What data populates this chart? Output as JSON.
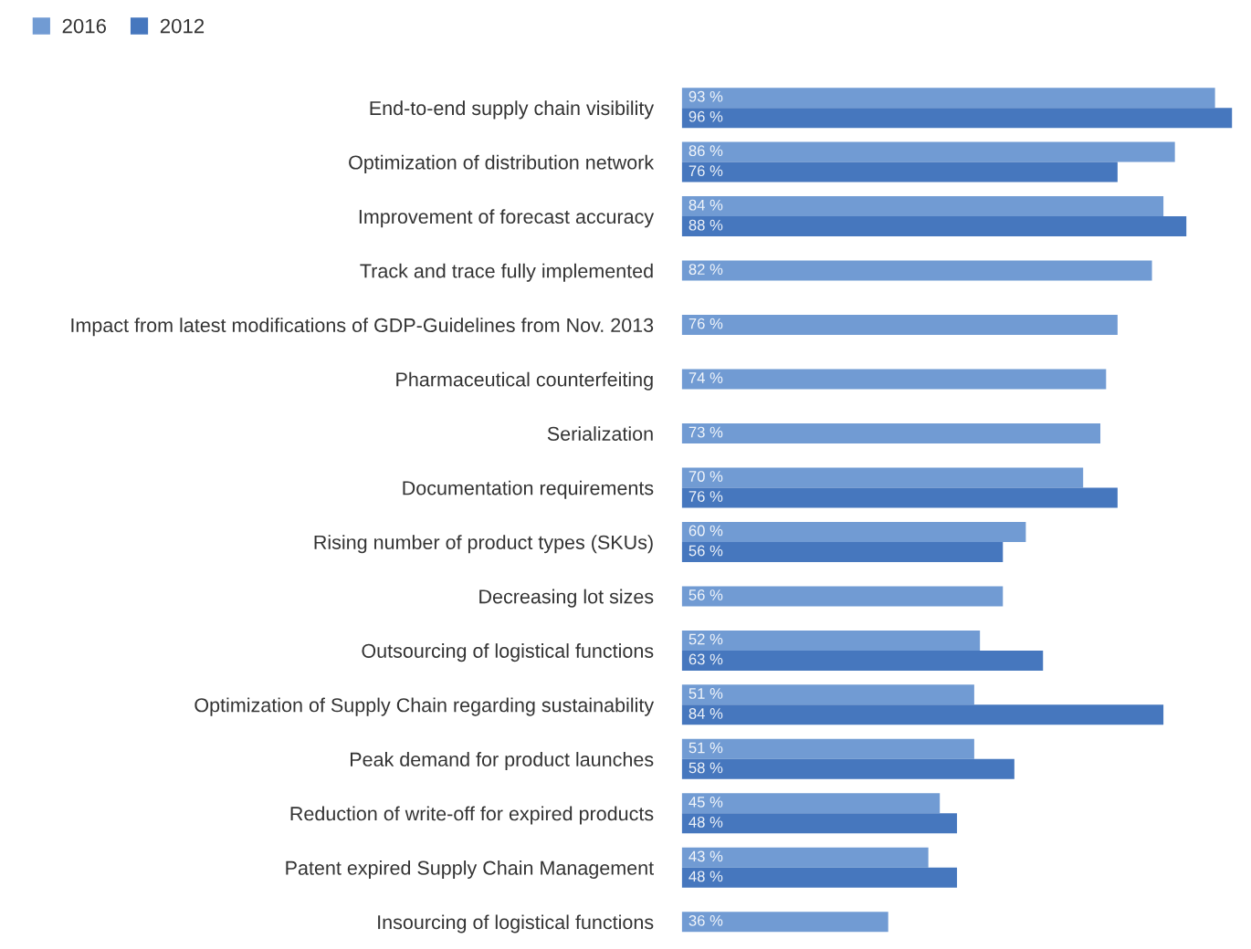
{
  "chart_data": {
    "type": "bar",
    "orientation": "horizontal",
    "legend": "top left",
    "grid": false,
    "categories": [
      "End-to-end supply chain visibility",
      "Optimization of distribution network",
      "Improvement of forecast accuracy",
      "Track and trace fully implemented",
      "Impact from latest modifications of GDP-Guidelines from Nov. 2013",
      "Pharmaceutical counterfeiting",
      "Serialization",
      "Documentation requirements",
      "Rising number of product types (SKUs)",
      "Decreasing lot sizes",
      "Outsourcing of logistical functions",
      "Optimization of Supply Chain regarding sustainability",
      "Peak demand for product launches",
      "Reduction of write-off for expired products",
      "Patent expired Supply Chain Management",
      "Insourcing of logistical functions"
    ],
    "series": [
      {
        "name": "2016",
        "color": "#719bd3",
        "values": [
          93,
          86,
          84,
          82,
          76,
          74,
          73,
          70,
          60,
          56,
          52,
          51,
          51,
          45,
          43,
          36
        ],
        "value_labels": [
          "93 %",
          "86 %",
          "84 %",
          "82 %",
          "76 %",
          "74 %",
          "73 %",
          "70 %",
          "60 %",
          "56 %",
          "52 %",
          "51 %",
          "51 %",
          "45 %",
          "43 %",
          "36 %"
        ]
      },
      {
        "name": "2012",
        "color": "#4677be",
        "values": [
          96,
          76,
          88,
          null,
          null,
          null,
          null,
          76,
          56,
          null,
          63,
          84,
          58,
          48,
          48,
          null
        ],
        "value_labels": [
          "96 %",
          "76 %",
          "88 %",
          null,
          null,
          null,
          null,
          "76 %",
          "56 %",
          null,
          "63 %",
          "84 %",
          "58 %",
          "48 %",
          "48 %",
          null
        ]
      }
    ]
  }
}
